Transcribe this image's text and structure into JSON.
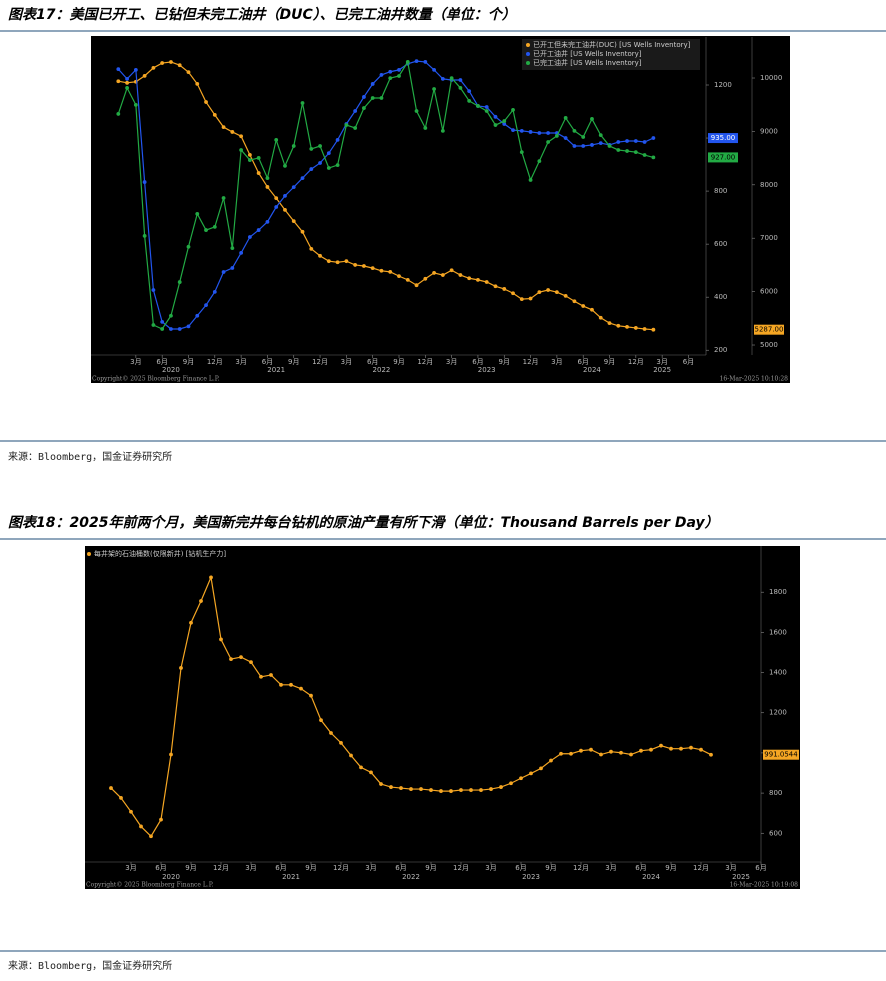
{
  "chart_data": [
    {
      "type": "line",
      "title": "图表17：美国已开工、已钻但未完工油井（DUC）、已完工油井数量（单位：个）",
      "source": "来源：Bloomberg，国金证券研究所",
      "copyright": "Copyright© 2025 Bloomberg Finance L.P.",
      "timestamp": "16-Mar-2025 10:10:28",
      "legend": "top-right",
      "x": [
        "2020-01",
        "2020-02",
        "2020-03",
        "2020-04",
        "2020-05",
        "2020-06",
        "2020-07",
        "2020-08",
        "2020-09",
        "2020-10",
        "2020-11",
        "2020-12",
        "2021-01",
        "2021-02",
        "2021-03",
        "2021-04",
        "2021-05",
        "2021-06",
        "2021-07",
        "2021-08",
        "2021-09",
        "2021-10",
        "2021-11",
        "2021-12",
        "2022-01",
        "2022-02",
        "2022-03",
        "2022-04",
        "2022-05",
        "2022-06",
        "2022-07",
        "2022-08",
        "2022-09",
        "2022-10",
        "2022-11",
        "2022-12",
        "2023-01",
        "2023-02",
        "2023-03",
        "2023-04",
        "2023-05",
        "2023-06",
        "2023-07",
        "2023-08",
        "2023-09",
        "2023-10",
        "2023-11",
        "2023-12",
        "2024-01",
        "2024-02",
        "2024-03",
        "2024-04",
        "2024-05",
        "2024-06",
        "2024-07",
        "2024-08",
        "2024-09",
        "2024-10",
        "2024-11",
        "2024-12",
        "2025-01",
        "2025-02"
      ],
      "xlim": [
        "2019-10",
        "2025-08"
      ],
      "xticks": [
        {
          "value": "2020-03",
          "label": "3月"
        },
        {
          "value": "2020-06",
          "label": "6月"
        },
        {
          "value": "2020-09",
          "label": "9月"
        },
        {
          "value": "2020-12",
          "label": "12月"
        },
        {
          "value": "2021-03",
          "label": "3月"
        },
        {
          "value": "2021-06",
          "label": "6月"
        },
        {
          "value": "2021-09",
          "label": "9月"
        },
        {
          "value": "2021-12",
          "label": "12月"
        },
        {
          "value": "2022-03",
          "label": "3月"
        },
        {
          "value": "2022-06",
          "label": "6月"
        },
        {
          "value": "2022-09",
          "label": "9月"
        },
        {
          "value": "2022-12",
          "label": "12月"
        },
        {
          "value": "2023-03",
          "label": "3月"
        },
        {
          "value": "2023-06",
          "label": "6月"
        },
        {
          "value": "2023-09",
          "label": "9月"
        },
        {
          "value": "2023-12",
          "label": "12月"
        },
        {
          "value": "2024-03",
          "label": "3月"
        },
        {
          "value": "2024-06",
          "label": "6月"
        },
        {
          "value": "2024-09",
          "label": "9月"
        },
        {
          "value": "2024-12",
          "label": "12月"
        },
        {
          "value": "2025-03",
          "label": "3月"
        },
        {
          "value": "2025-06",
          "label": "6月"
        }
      ],
      "years": [
        {
          "value": "2020-07",
          "label": "2020"
        },
        {
          "value": "2021-07",
          "label": "2021"
        },
        {
          "value": "2022-07",
          "label": "2022"
        },
        {
          "value": "2023-07",
          "label": "2023"
        },
        {
          "value": "2024-07",
          "label": "2024"
        },
        {
          "value": "2025-03",
          "label": "2025"
        }
      ],
      "ylim": [
        182,
        1381
      ],
      "yticks": [
        200,
        400,
        600,
        800,
        1000,
        1200
      ],
      "y2lim": [
        4813,
        10768
      ],
      "y2ticks": [
        5000,
        6000,
        7000,
        8000,
        9000,
        10000
      ],
      "y3lim": [
        117,
        1316
      ],
      "series": [
        {
          "name": "已开工但未完工油井(DUC) [US Wells Inventory]",
          "color": "#f5a623",
          "axis": "y2",
          "values": [
            9940,
            9910,
            9930,
            10040,
            10190,
            10280,
            10300,
            10240,
            10110,
            9890,
            9550,
            9310,
            9080,
            8990,
            8910,
            8560,
            8220,
            7960,
            7750,
            7530,
            7320,
            7120,
            6800,
            6670,
            6570,
            6550,
            6570,
            6500,
            6480,
            6440,
            6390,
            6370,
            6290,
            6220,
            6120,
            6240,
            6350,
            6310,
            6400,
            6310,
            6250,
            6220,
            6180,
            6100,
            6050,
            5970,
            5860,
            5870,
            5990,
            6030,
            5990,
            5920,
            5820,
            5730,
            5660,
            5510,
            5410,
            5360,
            5340,
            5320,
            5300,
            5287
          ],
          "value_labels": [
            null,
            null,
            null,
            null,
            null,
            null,
            null,
            null,
            null,
            null,
            null,
            null,
            null,
            null,
            null,
            null,
            null,
            null,
            null,
            null,
            null,
            null,
            null,
            null,
            null,
            null,
            null,
            null,
            null,
            null,
            null,
            null,
            null,
            null,
            null,
            null,
            null,
            null,
            null,
            null,
            null,
            null,
            null,
            null,
            null,
            null,
            null,
            null,
            null,
            null,
            null,
            null,
            null,
            null,
            null,
            null,
            null,
            null,
            null,
            null,
            null,
            "5287.00"
          ]
        },
        {
          "name": "已开工油井 [US Wells Inventory]",
          "color": "#2255ee",
          "axis": "y3",
          "values": [
            1195,
            1158,
            1192,
            769,
            362,
            242,
            215,
            215,
            225,
            265,
            305,
            355,
            430,
            445,
            502,
            562,
            588,
            619,
            675,
            717,
            750,
            784,
            818,
            841,
            878,
            928,
            988,
            1037,
            1090,
            1139,
            1173,
            1185,
            1192,
            1215,
            1225,
            1222,
            1192,
            1158,
            1154,
            1154,
            1112,
            1056,
            1052,
            1015,
            988,
            965,
            962,
            958,
            954,
            954,
            954,
            935,
            905,
            905,
            909,
            916,
            909,
            920,
            924,
            924,
            920,
            935
          ],
          "value_labels": [
            null,
            null,
            null,
            null,
            null,
            null,
            null,
            null,
            null,
            null,
            null,
            null,
            null,
            null,
            null,
            null,
            null,
            null,
            null,
            null,
            null,
            null,
            null,
            null,
            null,
            null,
            null,
            null,
            null,
            null,
            null,
            null,
            null,
            null,
            null,
            null,
            null,
            null,
            null,
            null,
            null,
            null,
            null,
            null,
            null,
            null,
            null,
            null,
            null,
            null,
            null,
            null,
            null,
            null,
            null,
            null,
            null,
            null,
            null,
            null,
            null,
            "935.00"
          ]
        },
        {
          "name": "已完工油井 [US Wells Inventory]",
          "color": "#22aa44",
          "values": [
            1091,
            1189,
            1125,
            631,
            295,
            280,
            330,
            457,
            590,
            714,
            653,
            665,
            774,
            585,
            955,
            917,
            925,
            849,
            993,
            895,
            970,
            1132,
            959,
            970,
            887,
            898,
            1049,
            1038,
            1113,
            1151,
            1151,
            1226,
            1234,
            1287,
            1102,
            1038,
            1185,
            1027,
            1226,
            1189,
            1140,
            1121,
            1102,
            1049,
            1064,
            1106,
            947,
            842,
            913,
            985,
            1008,
            1076,
            1027,
            1004,
            1072,
            1011,
            970,
            955,
            951,
            947,
            936,
            927
          ],
          "value_labels": [
            null,
            null,
            null,
            null,
            null,
            null,
            null,
            null,
            null,
            null,
            null,
            null,
            null,
            null,
            null,
            null,
            null,
            null,
            null,
            null,
            null,
            null,
            null,
            null,
            null,
            null,
            null,
            null,
            null,
            null,
            null,
            null,
            null,
            null,
            null,
            null,
            null,
            null,
            null,
            null,
            null,
            null,
            null,
            null,
            null,
            null,
            null,
            null,
            null,
            null,
            null,
            null,
            null,
            null,
            null,
            null,
            null,
            null,
            null,
            null,
            null,
            "927.00"
          ]
        }
      ]
    },
    {
      "type": "line",
      "title": "图表18：2025年前两个月，美国新完井每台钻机的原油产量有所下滑（单位：Thousand Barrels per Day）",
      "source": "来源：Bloomberg，国金证券研究所",
      "copyright": "Copyright© 2025 Bloomberg Finance L.P.",
      "timestamp": "16-Mar-2025 10:19:08",
      "legend": "top-left",
      "last_value_label": true,
      "x": [
        "2020-01",
        "2020-02",
        "2020-03",
        "2020-04",
        "2020-05",
        "2020-06",
        "2020-07",
        "2020-08",
        "2020-09",
        "2020-10",
        "2020-11",
        "2020-12",
        "2021-01",
        "2021-02",
        "2021-03",
        "2021-04",
        "2021-05",
        "2021-06",
        "2021-07",
        "2021-08",
        "2021-09",
        "2021-10",
        "2021-11",
        "2021-12",
        "2022-01",
        "2022-02",
        "2022-03",
        "2022-04",
        "2022-05",
        "2022-06",
        "2022-07",
        "2022-08",
        "2022-09",
        "2022-10",
        "2022-11",
        "2022-12",
        "2023-01",
        "2023-02",
        "2023-03",
        "2023-04",
        "2023-05",
        "2023-06",
        "2023-07",
        "2023-08",
        "2023-09",
        "2023-10",
        "2023-11",
        "2023-12",
        "2024-01",
        "2024-02",
        "2024-03",
        "2024-04",
        "2024-05",
        "2024-06",
        "2024-07",
        "2024-08",
        "2024-09",
        "2024-10",
        "2024-11",
        "2024-12",
        "2025-01"
      ],
      "xlim": [
        "2019-10",
        "2025-06"
      ],
      "xticks": [
        {
          "value": "2020-03",
          "label": "3月"
        },
        {
          "value": "2020-06",
          "label": "6月"
        },
        {
          "value": "2020-09",
          "label": "9月"
        },
        {
          "value": "2020-12",
          "label": "12月"
        },
        {
          "value": "2021-03",
          "label": "3月"
        },
        {
          "value": "2021-06",
          "label": "6月"
        },
        {
          "value": "2021-09",
          "label": "9月"
        },
        {
          "value": "2021-12",
          "label": "12月"
        },
        {
          "value": "2022-03",
          "label": "3月"
        },
        {
          "value": "2022-06",
          "label": "6月"
        },
        {
          "value": "2022-09",
          "label": "9月"
        },
        {
          "value": "2022-12",
          "label": "12月"
        },
        {
          "value": "2023-03",
          "label": "3月"
        },
        {
          "value": "2023-06",
          "label": "6月"
        },
        {
          "value": "2023-09",
          "label": "9月"
        },
        {
          "value": "2023-12",
          "label": "12月"
        },
        {
          "value": "2024-03",
          "label": "3月"
        },
        {
          "value": "2024-06",
          "label": "6月"
        },
        {
          "value": "2024-09",
          "label": "9月"
        },
        {
          "value": "2024-12",
          "label": "12月"
        },
        {
          "value": "2025-03",
          "label": "3月"
        },
        {
          "value": "2025-06",
          "label": "6月"
        }
      ],
      "years": [
        {
          "value": "2020-07",
          "label": "2020"
        },
        {
          "value": "2021-07",
          "label": "2021"
        },
        {
          "value": "2022-07",
          "label": "2022"
        },
        {
          "value": "2023-07",
          "label": "2023"
        },
        {
          "value": "2024-07",
          "label": "2024"
        },
        {
          "value": "2025-04",
          "label": "2025"
        }
      ],
      "ylim": [
        457,
        2030
      ],
      "yticks": [
        600,
        800,
        1000,
        1200,
        1400,
        1600,
        1800
      ],
      "series": [
        {
          "name": "每井架的石油桶数(仅限新井) [钻机生产力]",
          "color": "#f5a623",
          "values": [
            825,
            776,
            707,
            634,
            585,
            668,
            992,
            1423,
            1648,
            1756,
            1874,
            1565,
            1467,
            1477,
            1452,
            1379,
            1388,
            1339,
            1339,
            1320,
            1285,
            1163,
            1099,
            1050,
            987,
            928,
            903,
            845,
            830,
            825,
            820,
            820,
            815,
            810,
            810,
            815,
            815,
            815,
            820,
            830,
            849,
            874,
            898,
            923,
            962,
            996,
            996,
            1011,
            1016,
            992,
            1006,
            1001,
            992,
            1011,
            1016,
            1036,
            1021,
            1021,
            1026,
            1016,
            991.0544
          ]
        }
      ]
    }
  ]
}
